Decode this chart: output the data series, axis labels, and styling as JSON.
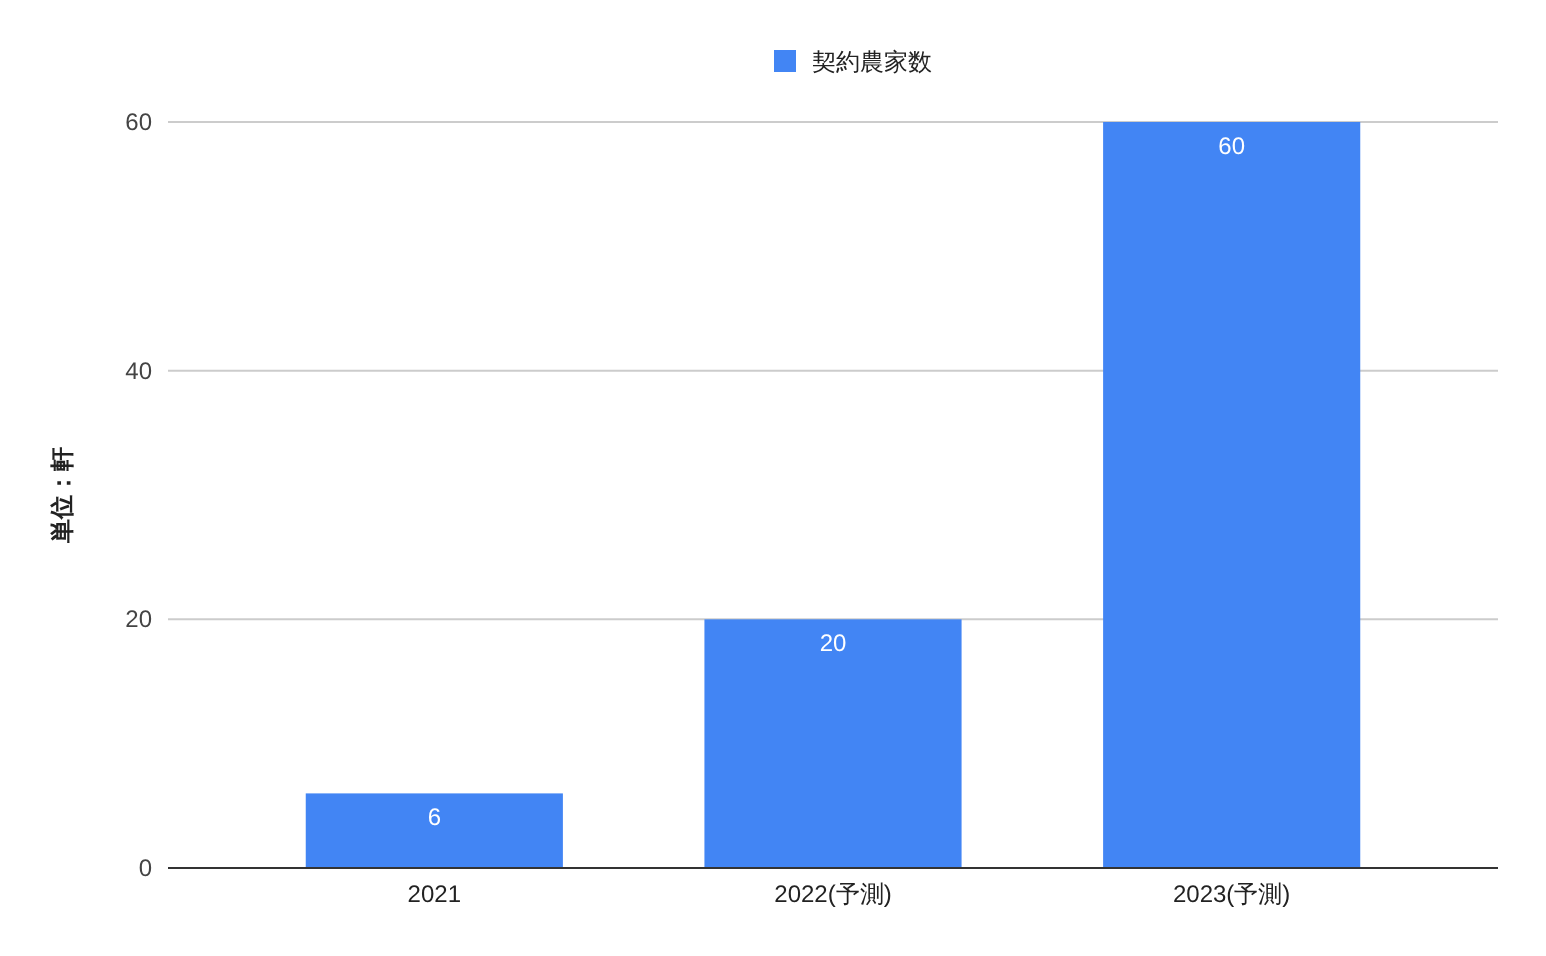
{
  "chart_data": {
    "type": "bar",
    "categories": [
      "2021",
      "2022(予測)",
      "2023(予測)"
    ],
    "series": [
      {
        "name": "契約農家数",
        "color": "#4285f4",
        "values": [
          6,
          20,
          60
        ]
      }
    ],
    "ylabel": "単位：軒",
    "ylim": [
      0,
      60
    ],
    "yticks": [
      0,
      20,
      40,
      60
    ],
    "grid": "y",
    "legend": "top",
    "data_labels": true
  }
}
